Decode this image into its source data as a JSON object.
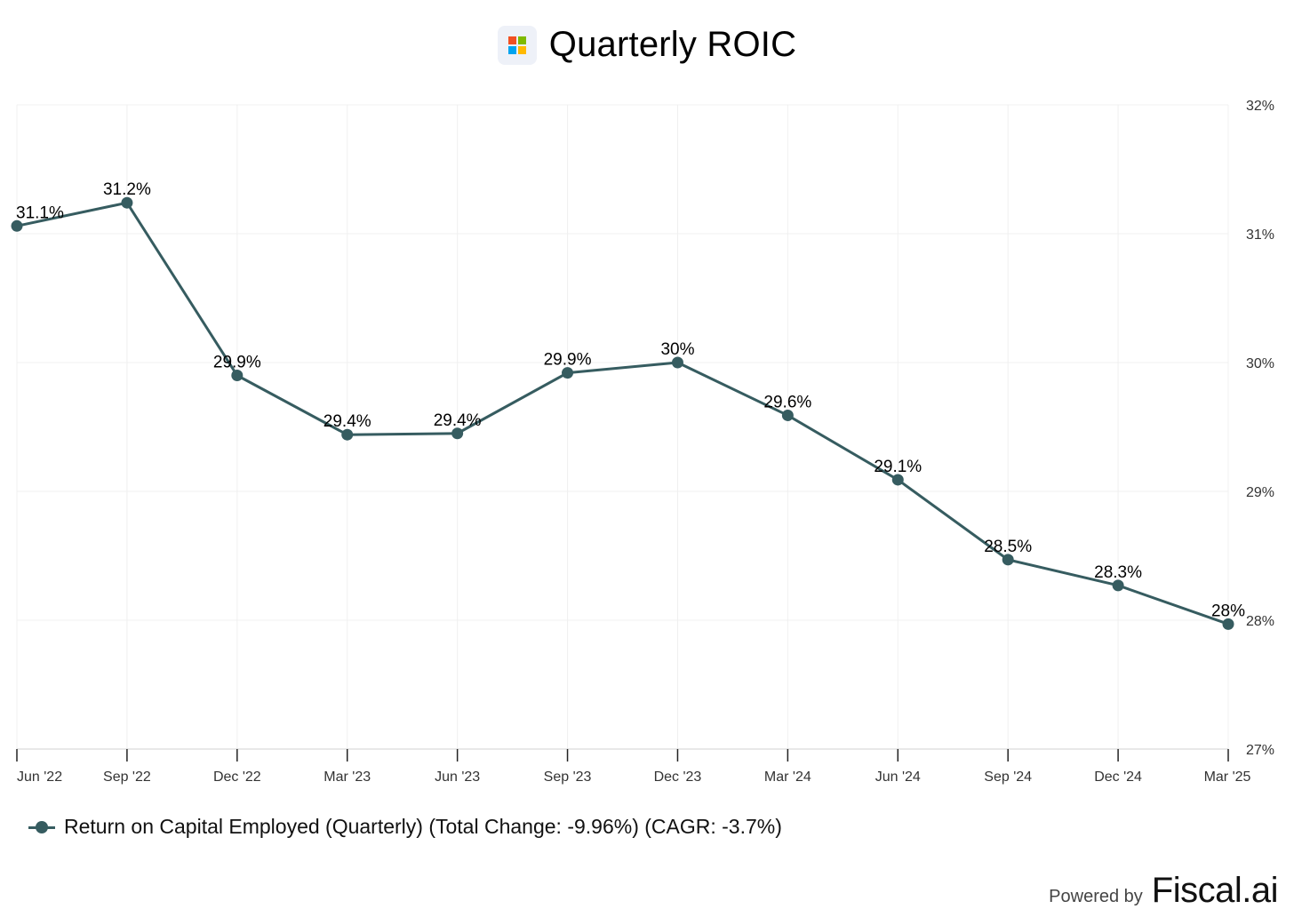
{
  "title": "Quarterly ROIC",
  "logo": {
    "icon": "microsoft-logo-icon",
    "colors": [
      "#f25022",
      "#7fba00",
      "#00a4ef",
      "#ffb900"
    ]
  },
  "colors": {
    "series": "#365c60",
    "grid": "#f0f0f0",
    "axis": "#d0d0d0",
    "tick_text": "#333333",
    "label_text": "#000000"
  },
  "chart_data": {
    "type": "line",
    "title": "Quarterly ROIC",
    "categories": [
      "Jun '22",
      "Sep '22",
      "Dec '22",
      "Mar '23",
      "Jun '23",
      "Sep '23",
      "Dec '23",
      "Mar '24",
      "Jun '24",
      "Sep '24",
      "Dec '24",
      "Mar '25"
    ],
    "series": [
      {
        "name": "Return on Capital Employed (Quarterly) (Total Change: -9.96%) (CAGR: -3.7%)",
        "values": [
          31.06,
          31.24,
          29.9,
          29.44,
          29.45,
          29.92,
          30.0,
          29.59,
          29.09,
          28.47,
          28.27,
          27.97
        ],
        "labels": [
          "31.1%",
          "31.2%",
          "29.9%",
          "29.4%",
          "29.4%",
          "29.9%",
          "30%",
          "29.6%",
          "29.1%",
          "28.5%",
          "28.3%",
          "28%"
        ]
      }
    ],
    "yticks": [
      "27%",
      "28%",
      "29%",
      "30%",
      "31%",
      "32%"
    ],
    "ylim": [
      27,
      32
    ],
    "y_axis_side": "right",
    "xlabel": "",
    "ylabel": "",
    "grid": true,
    "legend": "bottom-left"
  },
  "legend": {
    "text": "Return on Capital Employed (Quarterly) (Total Change: -9.96%) (CAGR: -3.7%)"
  },
  "footer": {
    "powered_by": "Powered by",
    "brand": "Fiscal.ai"
  }
}
